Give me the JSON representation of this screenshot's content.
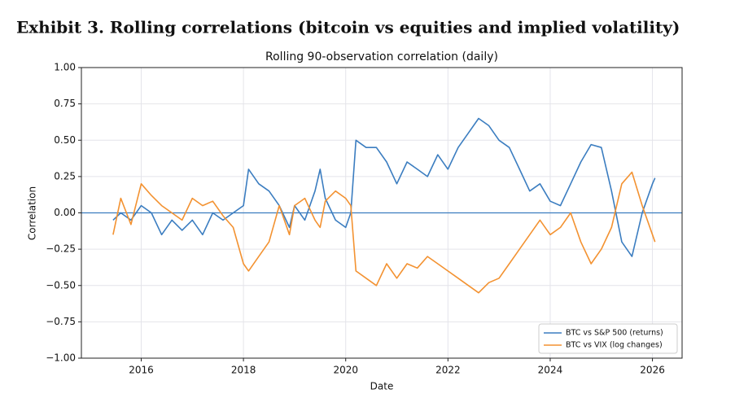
{
  "header": {
    "title": "Exhibit 3. Rolling correlations (bitcoin vs equities and implied volatility)"
  },
  "chart_data": {
    "type": "line",
    "title": "Rolling 90-observation correlation (daily)",
    "x_label": "Date",
    "y_label": "Correlation",
    "x": [
      2015.45,
      2015.6,
      2015.8,
      2016.0,
      2016.2,
      2016.4,
      2016.6,
      2016.8,
      2017.0,
      2017.2,
      2017.4,
      2017.6,
      2017.8,
      2018.0,
      2018.1,
      2018.3,
      2018.5,
      2018.7,
      2018.9,
      2019.0,
      2019.2,
      2019.4,
      2019.5,
      2019.6,
      2019.8,
      2020.0,
      2020.1,
      2020.2,
      2020.4,
      2020.6,
      2020.8,
      2021.0,
      2021.2,
      2021.4,
      2021.6,
      2021.8,
      2022.0,
      2022.2,
      2022.4,
      2022.6,
      2022.8,
      2023.0,
      2023.2,
      2023.4,
      2023.6,
      2023.8,
      2024.0,
      2024.2,
      2024.4,
      2024.6,
      2024.8,
      2025.0,
      2025.2,
      2025.4,
      2025.6,
      2025.8,
      2026.0,
      2026.05
    ],
    "series": [
      {
        "name": "BTC vs S&P 500 (returns)",
        "color": "#3b7dc0",
        "values": [
          -0.05,
          0.0,
          -0.05,
          0.05,
          0.0,
          -0.15,
          -0.05,
          -0.12,
          -0.05,
          -0.15,
          0.0,
          -0.05,
          0.0,
          0.05,
          0.3,
          0.2,
          0.15,
          0.05,
          -0.1,
          0.05,
          -0.05,
          0.15,
          0.3,
          0.1,
          -0.05,
          -0.1,
          0.0,
          0.5,
          0.45,
          0.45,
          0.35,
          0.2,
          0.35,
          0.3,
          0.25,
          0.4,
          0.3,
          0.45,
          0.55,
          0.65,
          0.6,
          0.5,
          0.45,
          0.3,
          0.15,
          0.2,
          0.08,
          0.05,
          0.2,
          0.35,
          0.47,
          0.45,
          0.15,
          -0.2,
          -0.3,
          0.0,
          0.2,
          0.24
        ]
      },
      {
        "name": "BTC vs VIX (log changes)",
        "color": "#f39231",
        "values": [
          -0.15,
          0.1,
          -0.08,
          0.2,
          0.12,
          0.05,
          0.0,
          -0.05,
          0.1,
          0.05,
          0.08,
          -0.02,
          -0.1,
          -0.35,
          -0.4,
          -0.3,
          -0.2,
          0.05,
          -0.15,
          0.05,
          0.1,
          -0.05,
          -0.1,
          0.08,
          0.15,
          0.1,
          0.05,
          -0.4,
          -0.45,
          -0.5,
          -0.35,
          -0.45,
          -0.35,
          -0.38,
          -0.3,
          -0.35,
          -0.4,
          -0.45,
          -0.5,
          -0.55,
          -0.48,
          -0.45,
          -0.35,
          -0.25,
          -0.15,
          -0.05,
          -0.15,
          -0.1,
          0.0,
          -0.2,
          -0.35,
          -0.25,
          -0.1,
          0.2,
          0.28,
          0.05,
          -0.15,
          -0.2
        ]
      }
    ],
    "hline": 0,
    "hline_color": "#3b7dc0",
    "xlim": [
      2014.83,
      2026.58
    ],
    "ylim": [
      -1,
      1
    ],
    "xticks": [
      2016,
      2018,
      2020,
      2022,
      2024,
      2026
    ],
    "yticks": [
      {
        "value": -1,
        "label": "−1.00"
      },
      {
        "value": -0.75,
        "label": "−0.75"
      },
      {
        "value": -0.5,
        "label": "−0.50"
      },
      {
        "value": -0.25,
        "label": "−0.25"
      },
      {
        "value": 0,
        "label": "0.00"
      },
      {
        "value": 0.25,
        "label": "0.25"
      },
      {
        "value": 0.5,
        "label": "0.50"
      },
      {
        "value": 0.75,
        "label": "0.75"
      },
      {
        "value": 1,
        "label": "1.00"
      }
    ],
    "grid": true,
    "legend": "lower right"
  }
}
